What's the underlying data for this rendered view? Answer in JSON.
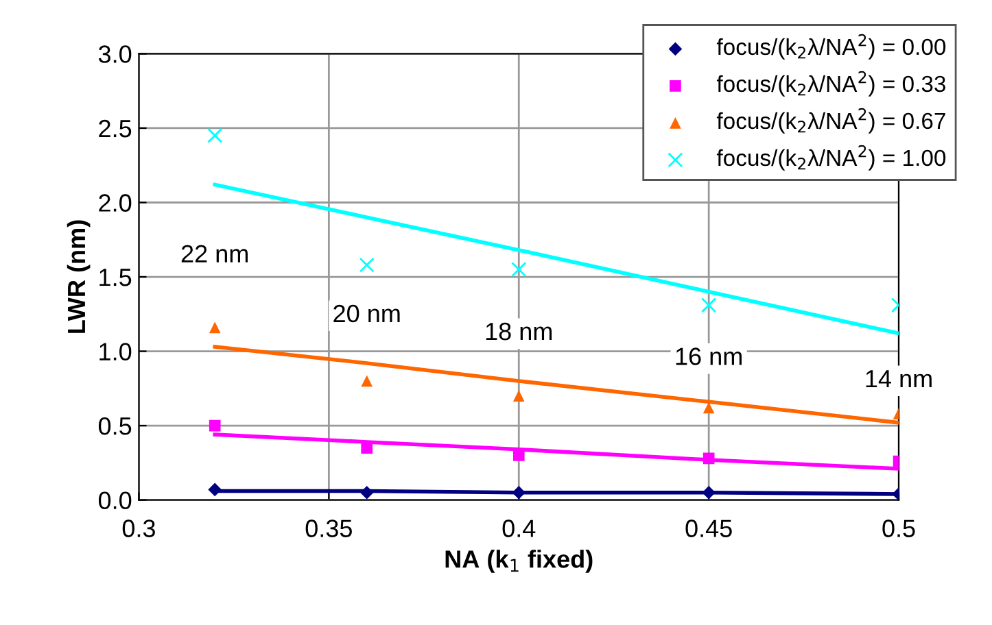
{
  "chart_data": {
    "type": "scatter",
    "xlabel": "NA (k$_{1}$ fixed)",
    "ylabel": "LWR (nm)",
    "xlim": [
      0.3,
      0.5
    ],
    "xticks": [
      0.3,
      0.35,
      0.4,
      0.45,
      0.5
    ],
    "ylim": [
      0,
      3
    ],
    "yticks": [
      {
        "value": 0,
        "label": "0.0"
      },
      {
        "value": 0.5,
        "label": "0.5"
      },
      {
        "value": 1,
        "label": "1.0"
      },
      {
        "value": 1.5,
        "label": "1.5"
      },
      {
        "value": 2,
        "label": "2.0"
      },
      {
        "value": 2.5,
        "label": "2.5"
      },
      {
        "value": 3,
        "label": "3.0"
      }
    ],
    "grid": true,
    "legend": "top right",
    "x": [
      0.32,
      0.36,
      0.4,
      0.45,
      0.5
    ],
    "series": [
      {
        "name": "focus/(k$_{2}$λ/NA$^{2}$) = 0.00",
        "color": "#000080",
        "marker": "diamond",
        "values": [
          0.07,
          0.05,
          0.05,
          0.05,
          0.04
        ]
      },
      {
        "name": "focus/(k$_{2}$λ/NA$^{2}$) = 0.33",
        "color": "#ff00ff",
        "marker": "square",
        "values": [
          0.5,
          0.35,
          0.3,
          0.28,
          0.26
        ]
      },
      {
        "name": "focus/(k$_{2}$λ/NA$^{2}$) = 0.67",
        "color": "#ff6600",
        "marker": "triangle",
        "values": [
          1.16,
          0.8,
          0.7,
          0.62,
          0.58
        ]
      },
      {
        "name": "focus/(k$_{2}$λ/NA$^{2}$) = 1.00",
        "color": "#00ffff",
        "marker": "cross",
        "values": [
          2.45,
          1.58,
          1.55,
          1.31,
          1.31
        ]
      },
      {
        "type": "line",
        "color": "#000080",
        "values": [
          0.06,
          0.06,
          0.05,
          0.05,
          0.04
        ]
      },
      {
        "type": "line",
        "color": "#ff00ff",
        "values": [
          0.44,
          0.39,
          0.34,
          0.27,
          0.21
        ]
      },
      {
        "type": "line",
        "color": "#ff6600",
        "values": [
          1.03,
          0.92,
          0.8,
          0.66,
          0.52
        ]
      },
      {
        "type": "line",
        "color": "#00ffff",
        "values": [
          2.12,
          1.9,
          1.68,
          1.4,
          1.12
        ]
      }
    ],
    "annotations": [
      "22 nm",
      "20 nm",
      "18 nm",
      "16 nm",
      "14 nm"
    ]
  }
}
